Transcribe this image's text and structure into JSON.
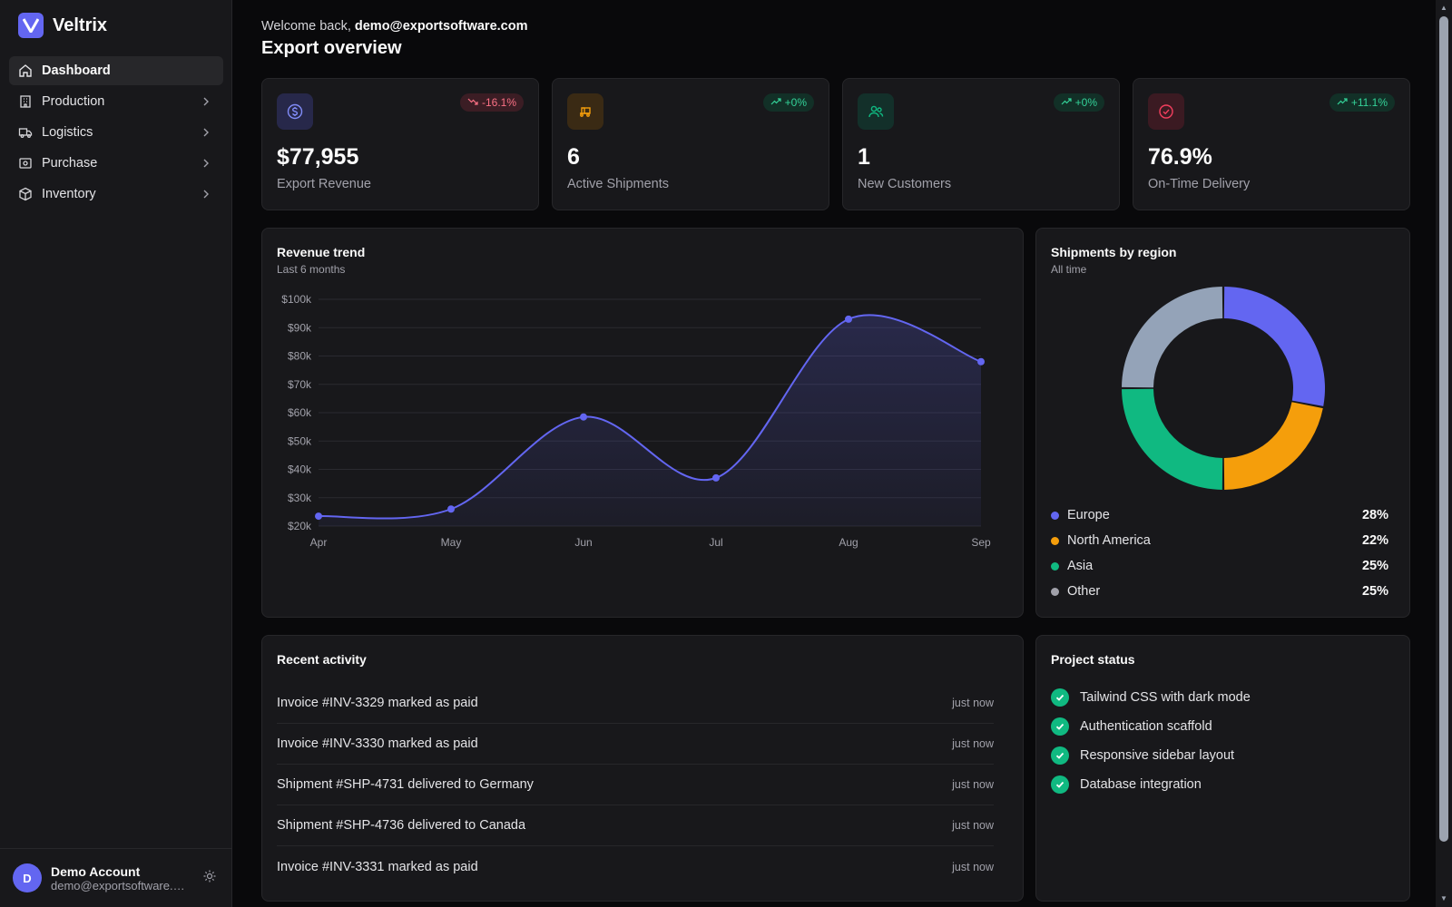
{
  "brand": {
    "name": "Veltrix"
  },
  "sidebar": {
    "items": [
      {
        "label": "Dashboard",
        "icon": "home-icon",
        "active": true
      },
      {
        "label": "Production",
        "icon": "building-icon"
      },
      {
        "label": "Logistics",
        "icon": "truck-icon"
      },
      {
        "label": "Purchase",
        "icon": "receipt-icon"
      },
      {
        "label": "Inventory",
        "icon": "box-icon"
      }
    ]
  },
  "account": {
    "initial": "D",
    "name": "Demo Account",
    "email": "demo@exportsoftware.com"
  },
  "header": {
    "welcome_prefix": "Welcome back, ",
    "user_email": "demo@exportsoftware.com",
    "title": "Export overview"
  },
  "kpis": [
    {
      "value": "$77,955",
      "label": "Export Revenue",
      "change": "-16.1%",
      "trend": "down",
      "icon": "dollar-icon",
      "color": "#818cf8"
    },
    {
      "value": "6",
      "label": "Active Shipments",
      "change": "+0%",
      "trend": "up",
      "icon": "truck-icon",
      "color": "#f59e0b"
    },
    {
      "value": "1",
      "label": "New Customers",
      "change": "+0%",
      "trend": "up",
      "icon": "users-icon",
      "color": "#10b981"
    },
    {
      "value": "76.9%",
      "label": "On-Time Delivery",
      "change": "+11.1%",
      "trend": "up",
      "icon": "check-circle-icon",
      "color": "#f43f5e"
    }
  ],
  "revenue_card": {
    "title": "Revenue trend",
    "subtitle": "Last 6 months"
  },
  "region_card": {
    "title": "Shipments by region",
    "subtitle": "All time"
  },
  "regions": [
    {
      "name": "Europe",
      "pct": "28%",
      "color": "#6366f1"
    },
    {
      "name": "North America",
      "pct": "22%",
      "color": "#f59e0b"
    },
    {
      "name": "Asia",
      "pct": "25%",
      "color": "#10b981"
    },
    {
      "name": "Other",
      "pct": "25%",
      "color": "#94a3b8"
    }
  ],
  "activity": {
    "title": "Recent activity",
    "items": [
      {
        "text": "Invoice #INV-3329 marked as paid",
        "time": "just now"
      },
      {
        "text": "Invoice #INV-3330 marked as paid",
        "time": "just now"
      },
      {
        "text": "Shipment #SHP-4731 delivered to Germany",
        "time": "just now"
      },
      {
        "text": "Shipment #SHP-4736 delivered to Canada",
        "time": "just now"
      },
      {
        "text": "Invoice #INV-3331 marked as paid",
        "time": "just now"
      }
    ]
  },
  "project_status": {
    "title": "Project status",
    "items": [
      "Tailwind CSS with dark mode",
      "Authentication scaffold",
      "Responsive sidebar layout",
      "Database integration"
    ]
  },
  "chart_data": [
    {
      "type": "area",
      "categories": [
        "Apr",
        "May",
        "Jun",
        "Jul",
        "Aug",
        "Sep"
      ],
      "values": [
        23500,
        26000,
        58500,
        37000,
        93000,
        78000
      ],
      "ytick_labels": [
        "$20k",
        "$30k",
        "$40k",
        "$50k",
        "$60k",
        "$70k",
        "$80k",
        "$90k",
        "$100k"
      ],
      "ylim": [
        20000,
        100000
      ],
      "color": "#6366f1",
      "grid": true
    },
    {
      "type": "pie",
      "categories": [
        "Europe",
        "North America",
        "Asia",
        "Other"
      ],
      "values": [
        28,
        22,
        25,
        25
      ],
      "colors": [
        "#6366f1",
        "#f59e0b",
        "#10b981",
        "#94a3b8"
      ],
      "donut": true
    }
  ]
}
